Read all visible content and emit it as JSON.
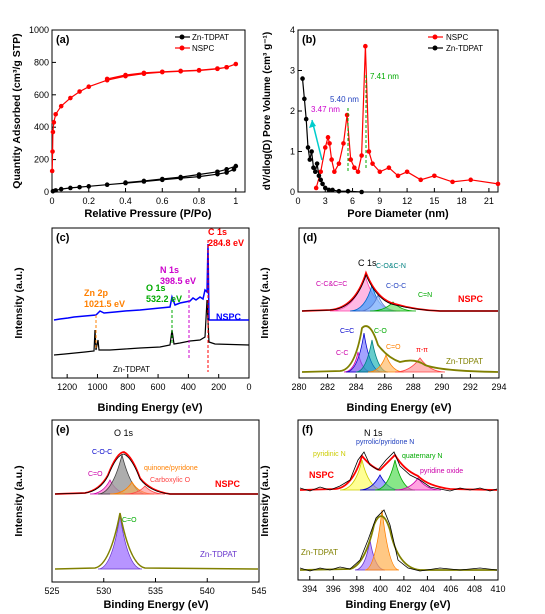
{
  "colors": {
    "nspc": "#ff0000",
    "zn": "#000000",
    "blue_line": "#0000ff",
    "green": "#00aa00",
    "magenta": "#cc00cc",
    "orange": "#ff8000",
    "purple": "#8a2be2",
    "teal": "#008080",
    "olive": "#808000"
  },
  "chart_data": [
    {
      "panel": "(a)",
      "type": "line",
      "xlabel": "Relative Pressure (P/Po)",
      "ylabel": "Quantity Adsorbed (cm³/g STP)",
      "xlim": [
        0,
        1.05
      ],
      "ylim": [
        0,
        1000
      ],
      "xticks": [
        0.0,
        0.2,
        0.4,
        0.6,
        0.8,
        1.0
      ],
      "yticks": [
        0,
        200,
        400,
        600,
        800,
        1000
      ],
      "legend": "top-right",
      "series": [
        {
          "name": "Zn-TDPAT",
          "color": "#000000",
          "marker": "circle",
          "x": [
            0.005,
            0.02,
            0.05,
            0.1,
            0.15,
            0.2,
            0.3,
            0.4,
            0.5,
            0.6,
            0.7,
            0.8,
            0.9,
            0.95,
            0.99,
            1.0,
            0.95,
            0.9,
            0.8,
            0.7,
            0.6,
            0.5,
            0.4
          ],
          "y": [
            5,
            10,
            18,
            25,
            30,
            35,
            45,
            55,
            65,
            75,
            85,
            95,
            110,
            120,
            140,
            160,
            140,
            125,
            108,
            92,
            80,
            68,
            58
          ]
        },
        {
          "name": "NSPC",
          "color": "#ff0000",
          "marker": "circle",
          "x": [
            0.001,
            0.003,
            0.005,
            0.01,
            0.02,
            0.05,
            0.1,
            0.15,
            0.2,
            0.3,
            0.4,
            0.5,
            0.6,
            0.7,
            0.8,
            0.9,
            0.95,
            1.0,
            0.95,
            0.9,
            0.8,
            0.7,
            0.6,
            0.5,
            0.4,
            0.3
          ],
          "y": [
            130,
            250,
            370,
            430,
            480,
            530,
            580,
            620,
            650,
            690,
            715,
            730,
            740,
            745,
            750,
            760,
            770,
            790,
            770,
            762,
            752,
            747,
            742,
            735,
            722,
            698
          ]
        }
      ]
    },
    {
      "panel": "(b)",
      "type": "line",
      "xlabel": "Pore Diameter (nm)",
      "ylabel": "dV/dlog(D) Pore Volume (cm³ g⁻¹)",
      "xlim": [
        0,
        22
      ],
      "ylim": [
        0,
        4
      ],
      "xticks": [
        0,
        3,
        6,
        9,
        12,
        15,
        18,
        21
      ],
      "yticks": [
        0,
        1,
        2,
        3,
        4
      ],
      "legend": "top-right",
      "annotations": [
        "7.41 nm",
        "5.40 nm",
        "3.47 nm"
      ],
      "series": [
        {
          "name": "NSPC",
          "color": "#ff0000",
          "marker": "circle",
          "x": [
            2.0,
            2.5,
            3.0,
            3.3,
            3.47,
            3.7,
            4.0,
            4.5,
            5.0,
            5.4,
            5.8,
            6.2,
            6.6,
            7.0,
            7.41,
            7.8,
            8.2,
            9.0,
            10.0,
            11.0,
            12.0,
            13.5,
            15.0,
            17.0,
            19.0,
            22.0
          ],
          "y": [
            0.1,
            0.5,
            1.1,
            1.35,
            1.2,
            0.8,
            0.5,
            0.7,
            1.2,
            1.9,
            0.8,
            0.6,
            0.5,
            0.9,
            3.6,
            1.0,
            0.7,
            0.5,
            0.6,
            0.4,
            0.5,
            0.3,
            0.4,
            0.25,
            0.3,
            0.2
          ]
        },
        {
          "name": "Zn-TDPAT",
          "color": "#000000",
          "marker": "circle",
          "x": [
            0.5,
            0.7,
            0.9,
            1.1,
            1.3,
            1.5,
            1.7,
            1.9,
            2.1,
            2.3,
            2.5,
            2.7,
            3.0,
            3.4,
            3.8,
            4.5,
            5.5,
            7.0
          ],
          "y": [
            2.8,
            2.3,
            1.8,
            1.1,
            0.8,
            1.0,
            0.6,
            0.5,
            0.7,
            0.4,
            0.3,
            0.2,
            0.1,
            0.05,
            0.05,
            0.02,
            0.02,
            0.0
          ]
        }
      ]
    },
    {
      "panel": "(c)",
      "type": "line",
      "xlabel": "Binding Energy (eV)",
      "ylabel": "Intensity (a.u.)",
      "xlim": [
        1300,
        0
      ],
      "xticks": [
        1200,
        1000,
        800,
        600,
        400,
        200,
        0
      ],
      "annotations": [
        "C 1s",
        "284.8 eV",
        "N 1s",
        "398.5 eV",
        "Zn 2p",
        "1021.5 eV",
        "O 1s",
        "532.2 eV"
      ],
      "series": [
        {
          "name": "NSPC",
          "color": "#0000ff"
        },
        {
          "name": "Zn-TDPAT",
          "color": "#000000"
        }
      ]
    },
    {
      "panel": "(d)",
      "type": "line",
      "title": "C 1s",
      "xlabel": "Binding Energy (eV)",
      "ylabel": "Intensity (a.u.)",
      "xlim": [
        280,
        294
      ],
      "xticks": [
        280,
        282,
        284,
        286,
        288,
        290,
        292,
        294
      ],
      "annotations": [
        "C-C&C=C",
        "C-O&C-N",
        "C-O-C",
        "C=N",
        "C=C",
        "C-C",
        "C-O",
        "C=O",
        "π-π"
      ],
      "series": [
        {
          "name": "NSPC"
        },
        {
          "name": "Zn-TDPAT"
        }
      ]
    },
    {
      "panel": "(e)",
      "type": "line",
      "title": "O 1s",
      "xlabel": "Binding Energy (eV)",
      "ylabel": "Intensity (a.u.)",
      "xlim": [
        525,
        545
      ],
      "xticks": [
        525,
        530,
        535,
        540,
        545
      ],
      "annotations": [
        "C-O-C",
        "C=O",
        "quinone/pyridone",
        "Carboxylic O",
        "C=O"
      ],
      "series": [
        {
          "name": "NSPC"
        },
        {
          "name": "Zn-TDPAT"
        }
      ]
    },
    {
      "panel": "(f)",
      "type": "line",
      "title": "N 1s",
      "xlabel": "Binding Energy (eV)",
      "ylabel": "Intensity (a.u.)",
      "xlim": [
        393,
        410
      ],
      "xticks": [
        394,
        396,
        398,
        400,
        402,
        404,
        406,
        408,
        410
      ],
      "annotations": [
        "pyrrolic/pyridone N",
        "pyridinic N",
        "quaternary N",
        "pyridine oxide"
      ],
      "series": [
        {
          "name": "NSPC"
        },
        {
          "name": "Zn-TDPAT"
        }
      ]
    }
  ]
}
